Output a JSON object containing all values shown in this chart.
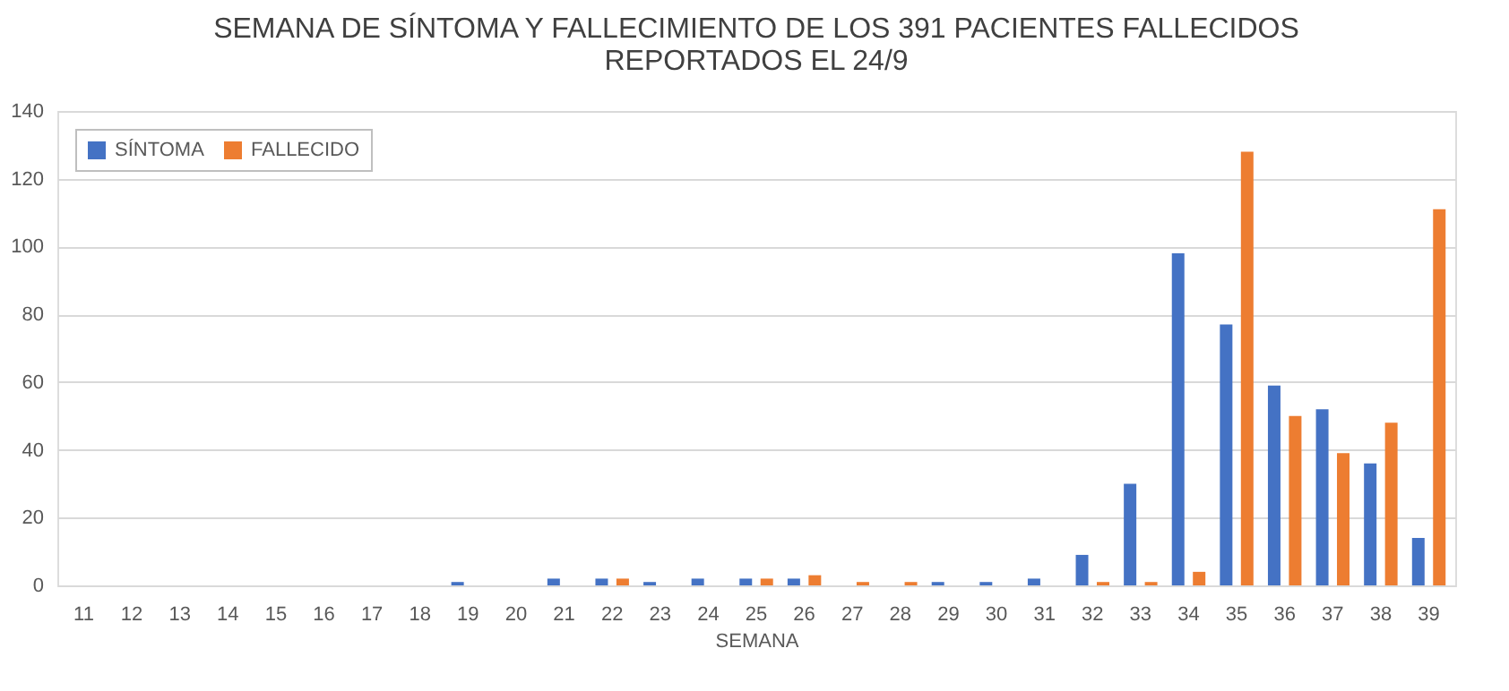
{
  "chart_data": {
    "type": "bar",
    "title": [
      "SEMANA DE SÍNTOMA Y FALLECIMIENTO DE LOS 391 PACIENTES FALLECIDOS",
      "REPORTADOS EL 24/9"
    ],
    "xlabel": "SEMANA",
    "categories": [
      "11",
      "12",
      "13",
      "14",
      "15",
      "16",
      "17",
      "18",
      "19",
      "20",
      "21",
      "22",
      "23",
      "24",
      "25",
      "26",
      "27",
      "28",
      "29",
      "30",
      "31",
      "32",
      "33",
      "34",
      "35",
      "36",
      "37",
      "38",
      "39"
    ],
    "series": [
      {
        "name": "SÍNTOMA",
        "color": "#4472c4",
        "values": [
          0,
          0,
          0,
          0,
          0,
          0,
          0,
          0,
          1,
          0,
          2,
          2,
          1,
          2,
          2,
          2,
          0,
          0,
          1,
          1,
          2,
          9,
          30,
          98,
          77,
          59,
          52,
          36,
          14
        ]
      },
      {
        "name": "FALLECIDO",
        "color": "#ed7d31",
        "values": [
          0,
          0,
          0,
          0,
          0,
          0,
          0,
          0,
          0,
          0,
          0,
          2,
          0,
          0,
          2,
          3,
          1,
          1,
          0,
          0,
          0,
          1,
          1,
          4,
          128,
          50,
          39,
          48,
          111
        ]
      }
    ],
    "ylim": [
      0,
      140
    ],
    "yticks": [
      0,
      20,
      40,
      60,
      80,
      100,
      120,
      140
    ],
    "grid": "y",
    "legend": "top left"
  }
}
